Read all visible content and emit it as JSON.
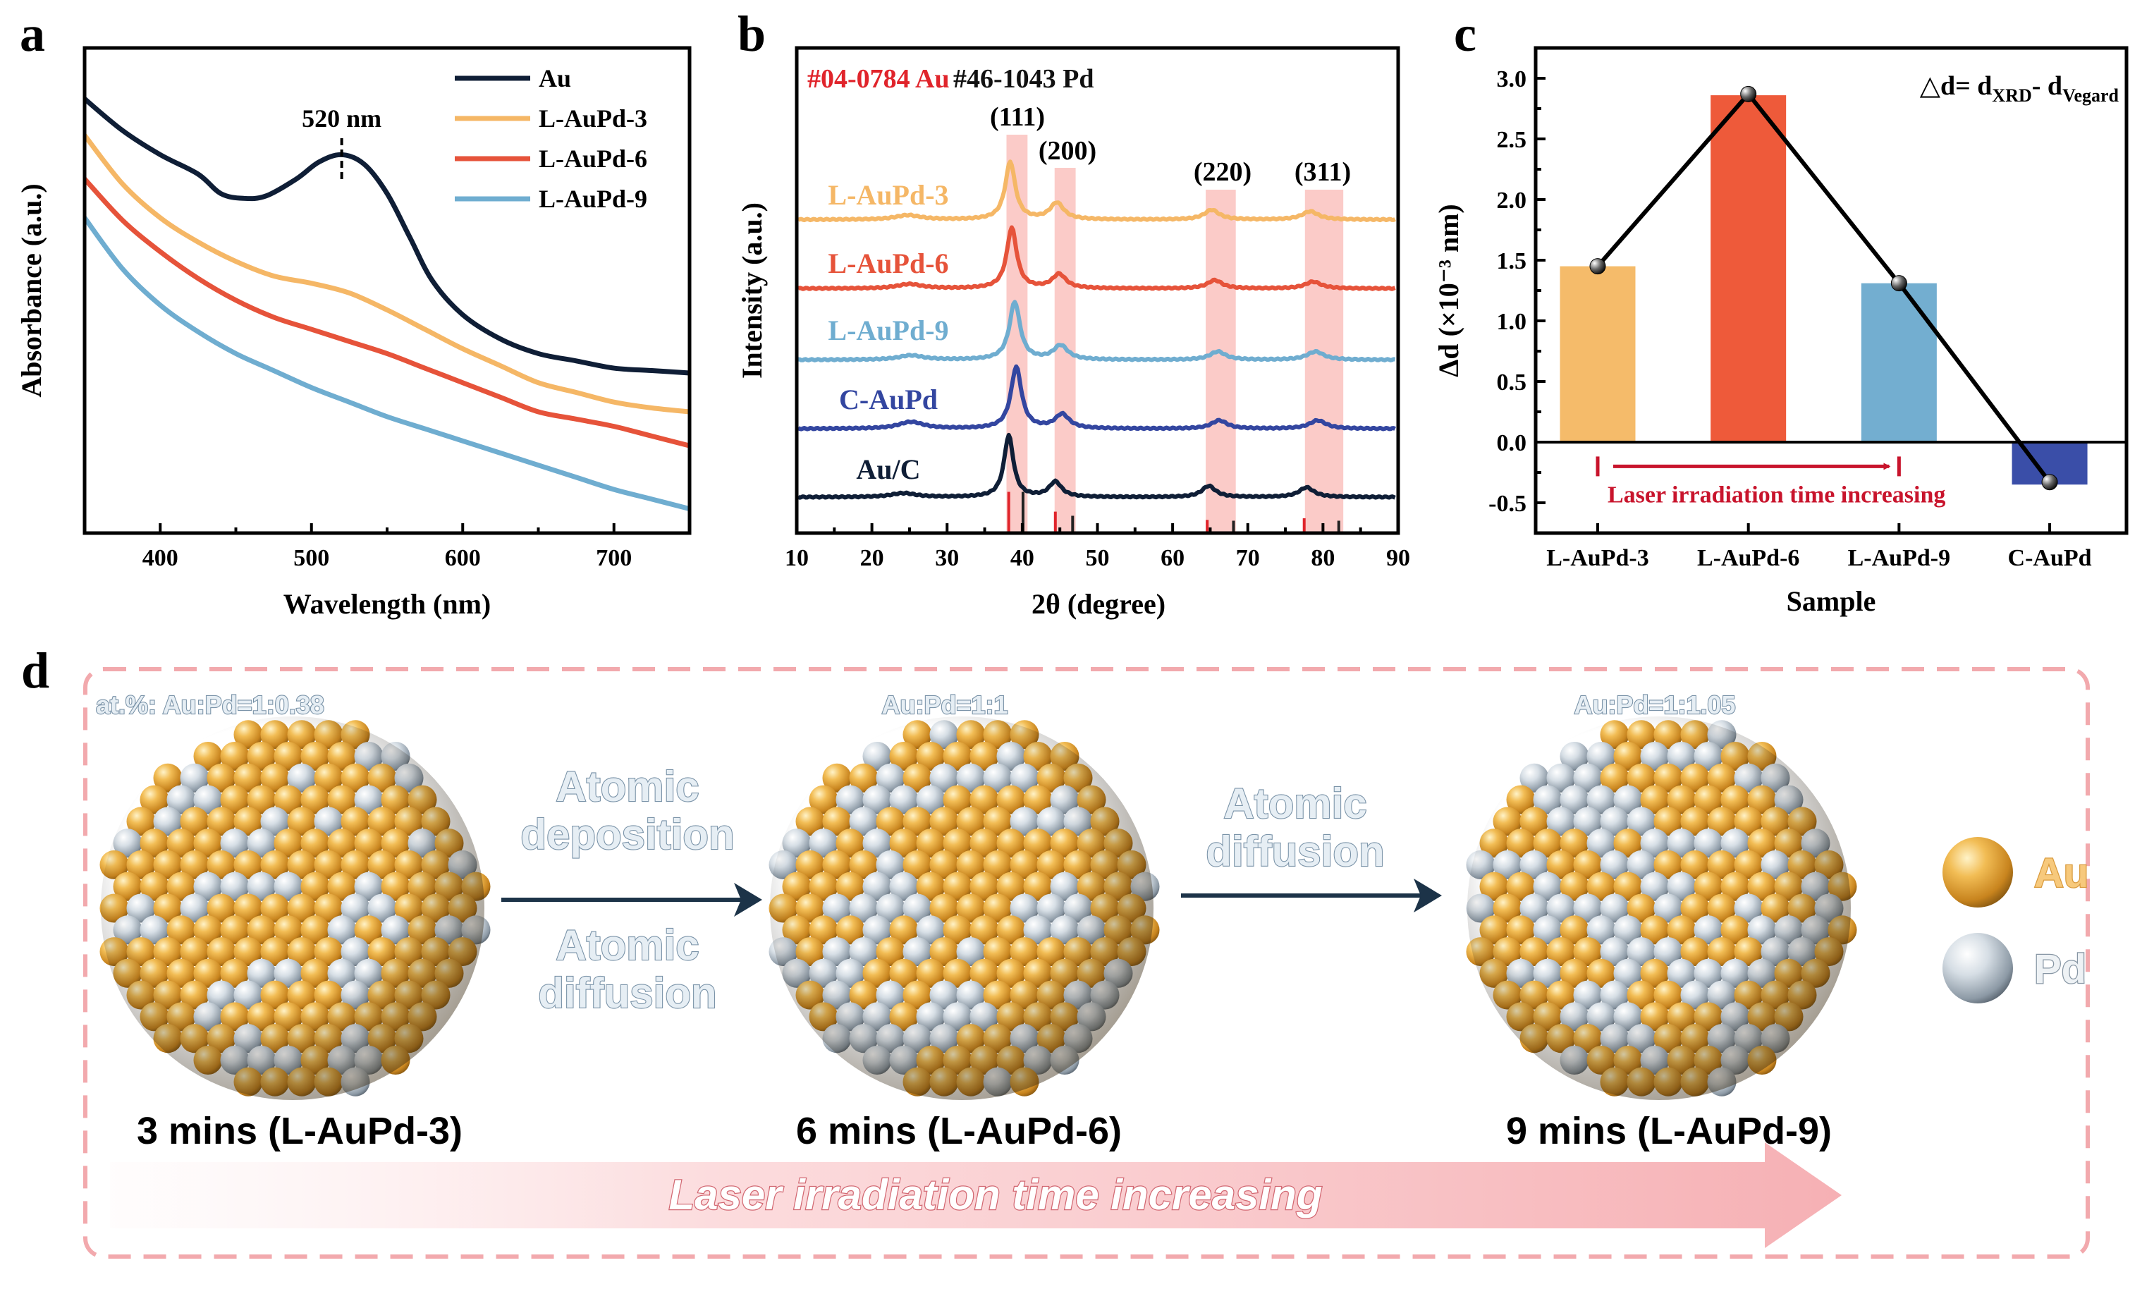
{
  "panel_letters": {
    "a": "a",
    "b": "b",
    "c": "c",
    "d": "d"
  },
  "chart_data": [
    {
      "panel": "a",
      "type": "line",
      "title": "",
      "xlabel": "Wavelength (nm)",
      "ylabel": "Absorbance (a.u.)",
      "xlim": [
        350,
        750
      ],
      "ylim": [
        0,
        1
      ],
      "xticks": [
        400,
        500,
        600,
        700
      ],
      "grid": false,
      "legend_position": "top-right",
      "annotation": "520 nm",
      "annotation_x": 520,
      "series": [
        {
          "name": "Au",
          "color": "#0f1e36",
          "x": [
            350,
            375,
            400,
            425,
            440,
            455,
            470,
            490,
            505,
            520,
            535,
            550,
            565,
            580,
            600,
            625,
            650,
            675,
            700,
            725,
            750
          ],
          "y": [
            0.895,
            0.83,
            0.78,
            0.74,
            0.7,
            0.69,
            0.695,
            0.73,
            0.765,
            0.78,
            0.76,
            0.7,
            0.61,
            0.52,
            0.45,
            0.4,
            0.37,
            0.355,
            0.34,
            0.335,
            0.33
          ]
        },
        {
          "name": "L-AuPd-3",
          "color": "#f5b766",
          "x": [
            350,
            375,
            400,
            425,
            450,
            475,
            500,
            525,
            550,
            575,
            600,
            625,
            650,
            675,
            700,
            725,
            750
          ],
          "y": [
            0.82,
            0.72,
            0.65,
            0.6,
            0.56,
            0.53,
            0.515,
            0.495,
            0.46,
            0.42,
            0.38,
            0.345,
            0.31,
            0.29,
            0.27,
            0.258,
            0.25
          ]
        },
        {
          "name": "L-AuPd-6",
          "color": "#e6533a",
          "x": [
            350,
            375,
            400,
            425,
            450,
            475,
            500,
            525,
            550,
            575,
            600,
            625,
            650,
            675,
            700,
            725,
            750
          ],
          "y": [
            0.73,
            0.645,
            0.58,
            0.525,
            0.48,
            0.445,
            0.42,
            0.395,
            0.37,
            0.34,
            0.31,
            0.28,
            0.25,
            0.235,
            0.22,
            0.2,
            0.18
          ]
        },
        {
          "name": "L-AuPd-9",
          "color": "#6fadd0",
          "x": [
            350,
            375,
            400,
            425,
            450,
            475,
            500,
            525,
            550,
            575,
            600,
            625,
            650,
            675,
            700,
            725,
            750
          ],
          "y": [
            0.65,
            0.545,
            0.47,
            0.415,
            0.37,
            0.335,
            0.3,
            0.27,
            0.24,
            0.215,
            0.19,
            0.165,
            0.14,
            0.115,
            0.09,
            0.07,
            0.05
          ]
        }
      ]
    },
    {
      "panel": "b",
      "type": "line",
      "title": "",
      "xlabel": "2θ (degree)",
      "ylabel": "Intensity (a.u.)",
      "xlim": [
        10,
        90
      ],
      "ylim": [
        0,
        10
      ],
      "xticks": [
        10,
        20,
        30,
        40,
        50,
        60,
        70,
        80,
        90
      ],
      "grid": false,
      "references": [
        {
          "label": "#04-0784 Au",
          "color": "#e0242b",
          "positions": [
            38.2,
            44.4,
            64.6,
            77.5
          ],
          "relative_intensity": [
            100,
            52,
            32,
            36
          ]
        },
        {
          "label": "#46-1043 Pd",
          "color": "#222222",
          "positions": [
            40.1,
            46.7,
            68.1,
            82.1
          ],
          "relative_intensity": [
            100,
            42,
            30,
            30
          ]
        }
      ],
      "reflections": [
        {
          "label": "(111)",
          "range": [
            37.9,
            40.7
          ]
        },
        {
          "label": "(200)",
          "range": [
            44.3,
            47.1
          ]
        },
        {
          "label": "(220)",
          "range": [
            64.4,
            68.4
          ]
        },
        {
          "label": "(311)",
          "range": [
            77.6,
            82.7
          ]
        }
      ],
      "series": [
        {
          "name": "L-AuPd-3",
          "color": "#f5b766",
          "baseline": 6.46,
          "peaks": [
            [
              24.8,
              0.09,
              4
            ],
            [
              38.4,
              1.19,
              1.6
            ],
            [
              44.6,
              0.34,
              2.2
            ],
            [
              65.2,
              0.2,
              2.4
            ],
            [
              78.3,
              0.17,
              2.6
            ]
          ]
        },
        {
          "name": "L-AuPd-6",
          "color": "#e6533a",
          "baseline": 5.04,
          "peaks": [
            [
              25.0,
              0.09,
              4
            ],
            [
              38.6,
              1.25,
              1.6
            ],
            [
              44.9,
              0.29,
              2.2
            ],
            [
              65.6,
              0.17,
              2.4
            ],
            [
              78.7,
              0.14,
              2.6
            ]
          ]
        },
        {
          "name": "L-AuPd-9",
          "color": "#6fadd0",
          "baseline": 3.57,
          "peaks": [
            [
              25.2,
              0.09,
              4
            ],
            [
              39.0,
              1.19,
              1.7
            ],
            [
              45.1,
              0.29,
              2.3
            ],
            [
              66.0,
              0.17,
              2.5
            ],
            [
              79.0,
              0.17,
              2.7
            ]
          ]
        },
        {
          "name": "C-AuPd",
          "color": "#3346a0",
          "baseline": 2.15,
          "peaks": [
            [
              25.2,
              0.14,
              4
            ],
            [
              39.2,
              1.27,
              1.7
            ],
            [
              45.3,
              0.29,
              2.3
            ],
            [
              66.2,
              0.17,
              2.5
            ],
            [
              79.3,
              0.17,
              2.7
            ]
          ]
        },
        {
          "name": "Au/C",
          "color": "#0f1e36",
          "baseline": 0.74,
          "peaks": [
            [
              24.2,
              0.08,
              4
            ],
            [
              38.2,
              1.27,
              1.5
            ],
            [
              44.4,
              0.31,
              2.0
            ],
            [
              64.8,
              0.23,
              2.2
            ],
            [
              77.8,
              0.2,
              2.4
            ]
          ]
        }
      ]
    },
    {
      "panel": "c",
      "type": "bar",
      "title": "",
      "xlabel": "Sample",
      "ylabel": "Δd (×10⁻³ nm)",
      "categories": [
        "L-AuPd-3",
        "L-AuPd-6",
        "L-AuPd-9",
        "C-AuPd"
      ],
      "values": [
        1.45,
        2.86,
        1.31,
        -0.35
      ],
      "line_values": [
        1.45,
        2.87,
        1.31,
        -0.33
      ],
      "colors": [
        "#f5bb6a",
        "#ee5a3a",
        "#73aed0",
        "#3a4ea8"
      ],
      "ylim": [
        -0.75,
        3.25
      ],
      "yticks": [
        -0.5,
        0.0,
        0.5,
        1.0,
        1.5,
        2.0,
        2.5,
        3.0
      ],
      "ytick_labels": [
        "-0.5",
        "0.0",
        "0.5",
        "1.0",
        "1.5",
        "2.0",
        "2.5",
        "3.0"
      ],
      "grid": false,
      "formula": {
        "lhs": "△d= d",
        "sub1": "XRD",
        "mid": "- d",
        "sub2": "Vegard"
      },
      "annotation": {
        "text": "Laser irradiation time increasing",
        "from": "L-AuPd-3",
        "to": "L-AuPd-9",
        "color": "#c8142c"
      }
    }
  ],
  "diagram": {
    "stages": [
      {
        "ratio": "at.%: Au:Pd=1:0.38",
        "caption": "3 mins (L-AuPd-3)",
        "pd_fraction": 0.18
      },
      {
        "ratio": "Au:Pd=1:1",
        "caption": "6 mins (L-AuPd-6)",
        "pd_fraction": 0.36
      },
      {
        "ratio": "Au:Pd=1:1.05",
        "caption": "9 mins (L-AuPd-9)",
        "pd_fraction": 0.42
      }
    ],
    "transitions": [
      {
        "above": [
          "Atomic",
          "deposition"
        ],
        "below": [
          "Atomic",
          "diffusion"
        ]
      },
      {
        "above": [
          "Atomic",
          "diffusion"
        ],
        "below": []
      }
    ],
    "legend": [
      {
        "label": "Au",
        "color": "#e0a43c"
      },
      {
        "label": "Pd",
        "color": "#c8d2da"
      }
    ],
    "time_arrow": "Laser irradiation time increasing"
  }
}
